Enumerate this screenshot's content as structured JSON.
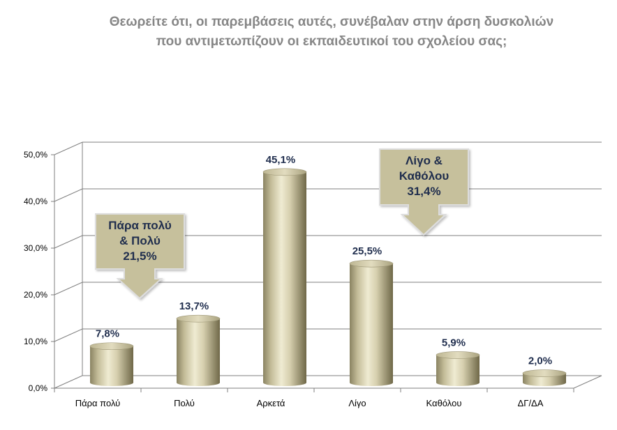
{
  "chart_data": {
    "type": "bar",
    "title_lines": [
      "Θεωρείτε ότι, οι παρεμβάσεις αυτές, συνέβαλαν στην άρση δυσκολιών",
      "που αντιμετωπίζουν οι εκπαιδευτικοί του σχολείου σας;"
    ],
    "categories": [
      "Πάρα πολύ",
      "Πολύ",
      "Αρκετά",
      "Λίγο",
      "Καθόλου",
      "ΔΓ/ΔΑ"
    ],
    "values": [
      7.8,
      13.7,
      45.1,
      25.5,
      5.9,
      2.0
    ],
    "data_labels": [
      "7,8%",
      "13,7%",
      "45,1%",
      "25,5%",
      "5,9%",
      "2,0%"
    ],
    "ylim": [
      0,
      50
    ],
    "yticks": [
      {
        "value": 0,
        "label": "0,0%"
      },
      {
        "value": 10,
        "label": "10,0%"
      },
      {
        "value": 20,
        "label": "20,0%"
      },
      {
        "value": 30,
        "label": "30,0%"
      },
      {
        "value": 40,
        "label": "40,0%"
      },
      {
        "value": 50,
        "label": "50,0%"
      }
    ],
    "grid": true,
    "bar_style": "cylinder",
    "colors": {
      "bar_light": "#eeeacf",
      "bar_mid": "#c9c2a0",
      "bar_dark": "#7c7554",
      "bar_top": "#d8d2b4",
      "grid": "#7f7f7f",
      "label": "#1f2d4d",
      "title": "#868686",
      "callout_fill": "#c6c09c",
      "callout_border": "#dddddd"
    },
    "annotations": [
      {
        "lines": [
          "Πάρα πολύ",
          "& Πολύ",
          "21,5%"
        ],
        "value": 21.5,
        "points_to": "Πάρα πολύ"
      },
      {
        "lines": [
          "Λίγο &",
          "Καθόλου",
          "31,4%"
        ],
        "value": 31.4,
        "points_to": "Λίγο"
      }
    ]
  }
}
